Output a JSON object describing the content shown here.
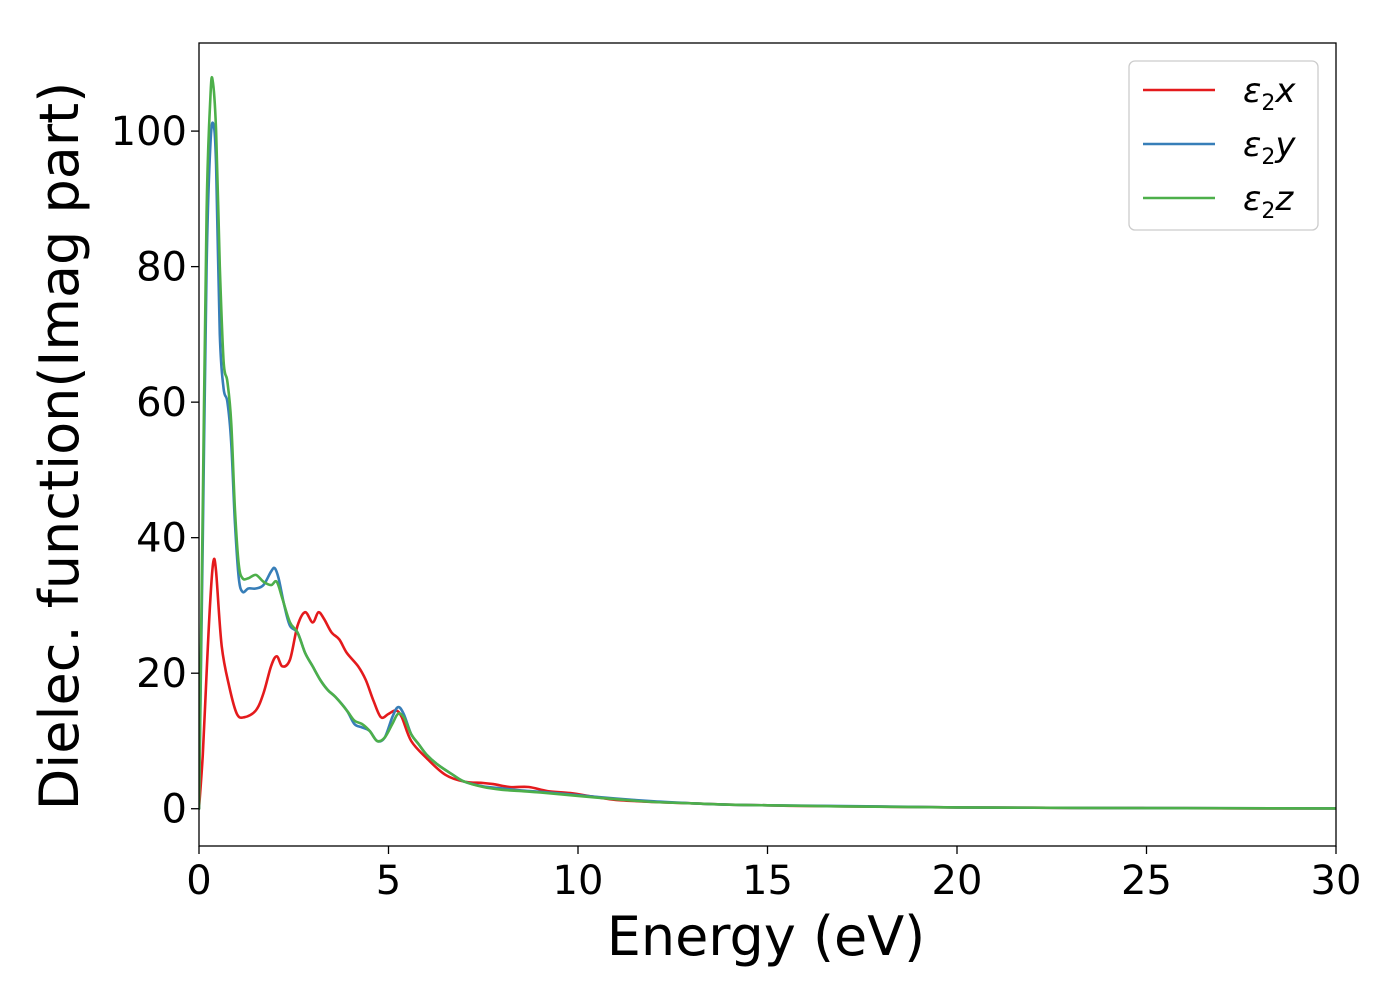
{
  "chart_data": {
    "type": "line",
    "title": "",
    "xlabel": "Energy (eV)",
    "ylabel": "Dielec. function(Imag part)",
    "xlim": [
      0,
      30
    ],
    "ylim": [
      -5.5,
      113
    ],
    "xticks": [
      "0",
      "5",
      "10",
      "15",
      "20",
      "25",
      "30"
    ],
    "yticks": [
      "0",
      "20",
      "40",
      "60",
      "80",
      "100"
    ],
    "grid": false,
    "legend_position": "top-right",
    "series": [
      {
        "name": "ε2x",
        "symbol": "ε",
        "sub": "2",
        "axis": "x",
        "color": "#e41a1c",
        "x": [
          0,
          0.1,
          0.2,
          0.3,
          0.38,
          0.45,
          0.6,
          0.8,
          1.0,
          1.2,
          1.5,
          1.7,
          1.9,
          2.05,
          2.2,
          2.4,
          2.6,
          2.8,
          3.0,
          3.15,
          3.3,
          3.5,
          3.7,
          3.9,
          4.2,
          4.4,
          4.6,
          4.8,
          5.0,
          5.2,
          5.35,
          5.6,
          6.0,
          6.5,
          7.0,
          7.5,
          7.8,
          8.2,
          8.7,
          9.2,
          9.8,
          10.5,
          11.0,
          12.0,
          13.0,
          14.0,
          15.0,
          16.0,
          18.0,
          20.0,
          22.0,
          24.0,
          26.0,
          28.0,
          30.0
        ],
        "values": [
          0,
          8,
          20,
          31,
          36.5,
          35,
          24,
          18,
          14,
          13.5,
          14.5,
          17,
          21,
          22.5,
          21,
          22,
          27,
          29,
          27.5,
          29,
          28,
          26,
          25,
          23,
          21,
          19,
          16,
          13.5,
          14,
          14.5,
          13.5,
          10,
          7.5,
          5,
          4,
          3.8,
          3.6,
          3.2,
          3.2,
          2.6,
          2.3,
          1.7,
          1.3,
          1.0,
          0.8,
          0.6,
          0.5,
          0.4,
          0.3,
          0.2,
          0.15,
          0.1,
          0.08,
          0.05,
          0.05
        ]
      },
      {
        "name": "ε2y",
        "symbol": "ε",
        "sub": "2",
        "axis": "y",
        "color": "#377eb8",
        "x": [
          0,
          0.1,
          0.2,
          0.3,
          0.38,
          0.45,
          0.55,
          0.65,
          0.75,
          0.85,
          0.95,
          1.05,
          1.15,
          1.3,
          1.5,
          1.7,
          1.9,
          2.0,
          2.1,
          2.25,
          2.4,
          2.6,
          2.8,
          3.0,
          3.2,
          3.4,
          3.6,
          3.9,
          4.1,
          4.3,
          4.5,
          4.7,
          4.9,
          5.1,
          5.25,
          5.4,
          5.6,
          5.8,
          6.0,
          6.3,
          6.7,
          7.0,
          7.5,
          8.0,
          8.5,
          9.0,
          10.0,
          11.0,
          12.0,
          13.0,
          14.0,
          15.0,
          17.0,
          20.0,
          25.0,
          30.0
        ],
        "values": [
          0,
          40,
          80,
          98,
          101,
          95,
          70,
          62,
          60,
          54,
          42,
          34,
          32,
          32.5,
          32.5,
          33,
          35,
          35.5,
          34,
          30,
          27,
          26,
          23,
          21,
          19,
          17.5,
          16.5,
          14.5,
          12.5,
          12,
          11.5,
          10,
          10.5,
          13.5,
          15,
          14,
          11,
          9.5,
          8,
          6.5,
          5,
          4,
          3.3,
          3.0,
          2.7,
          2.5,
          2.0,
          1.5,
          1.1,
          0.8,
          0.6,
          0.5,
          0.4,
          0.2,
          0.1,
          0.05
        ]
      },
      {
        "name": "ε2z",
        "symbol": "ε",
        "sub": "2",
        "axis": "z",
        "color": "#4daf4a",
        "x": [
          0,
          0.1,
          0.2,
          0.3,
          0.36,
          0.45,
          0.55,
          0.65,
          0.75,
          0.85,
          0.95,
          1.05,
          1.15,
          1.3,
          1.5,
          1.7,
          1.9,
          2.05,
          2.2,
          2.4,
          2.6,
          2.8,
          3.0,
          3.2,
          3.4,
          3.6,
          3.9,
          4.1,
          4.3,
          4.5,
          4.7,
          4.9,
          5.1,
          5.25,
          5.4,
          5.6,
          5.8,
          6.0,
          6.3,
          6.7,
          7.0,
          7.5,
          8.0,
          8.5,
          9.0,
          10.0,
          11.0,
          12.0,
          13.0,
          14.0,
          15.0,
          17.0,
          20.0,
          25.0,
          30.0
        ],
        "values": [
          0,
          45,
          88,
          105,
          107.5,
          100,
          80,
          66,
          63,
          57,
          44,
          36,
          34,
          34,
          34.5,
          33.5,
          33,
          33.5,
          31,
          27.5,
          26,
          23,
          21,
          19,
          17.5,
          16.5,
          14.5,
          13,
          12.5,
          11.5,
          10,
          10.5,
          12.5,
          14,
          13.5,
          11,
          9.5,
          8,
          6.5,
          5,
          4,
          3.2,
          2.8,
          2.6,
          2.4,
          1.9,
          1.4,
          1.0,
          0.8,
          0.6,
          0.5,
          0.35,
          0.2,
          0.1,
          0.05
        ]
      }
    ]
  }
}
